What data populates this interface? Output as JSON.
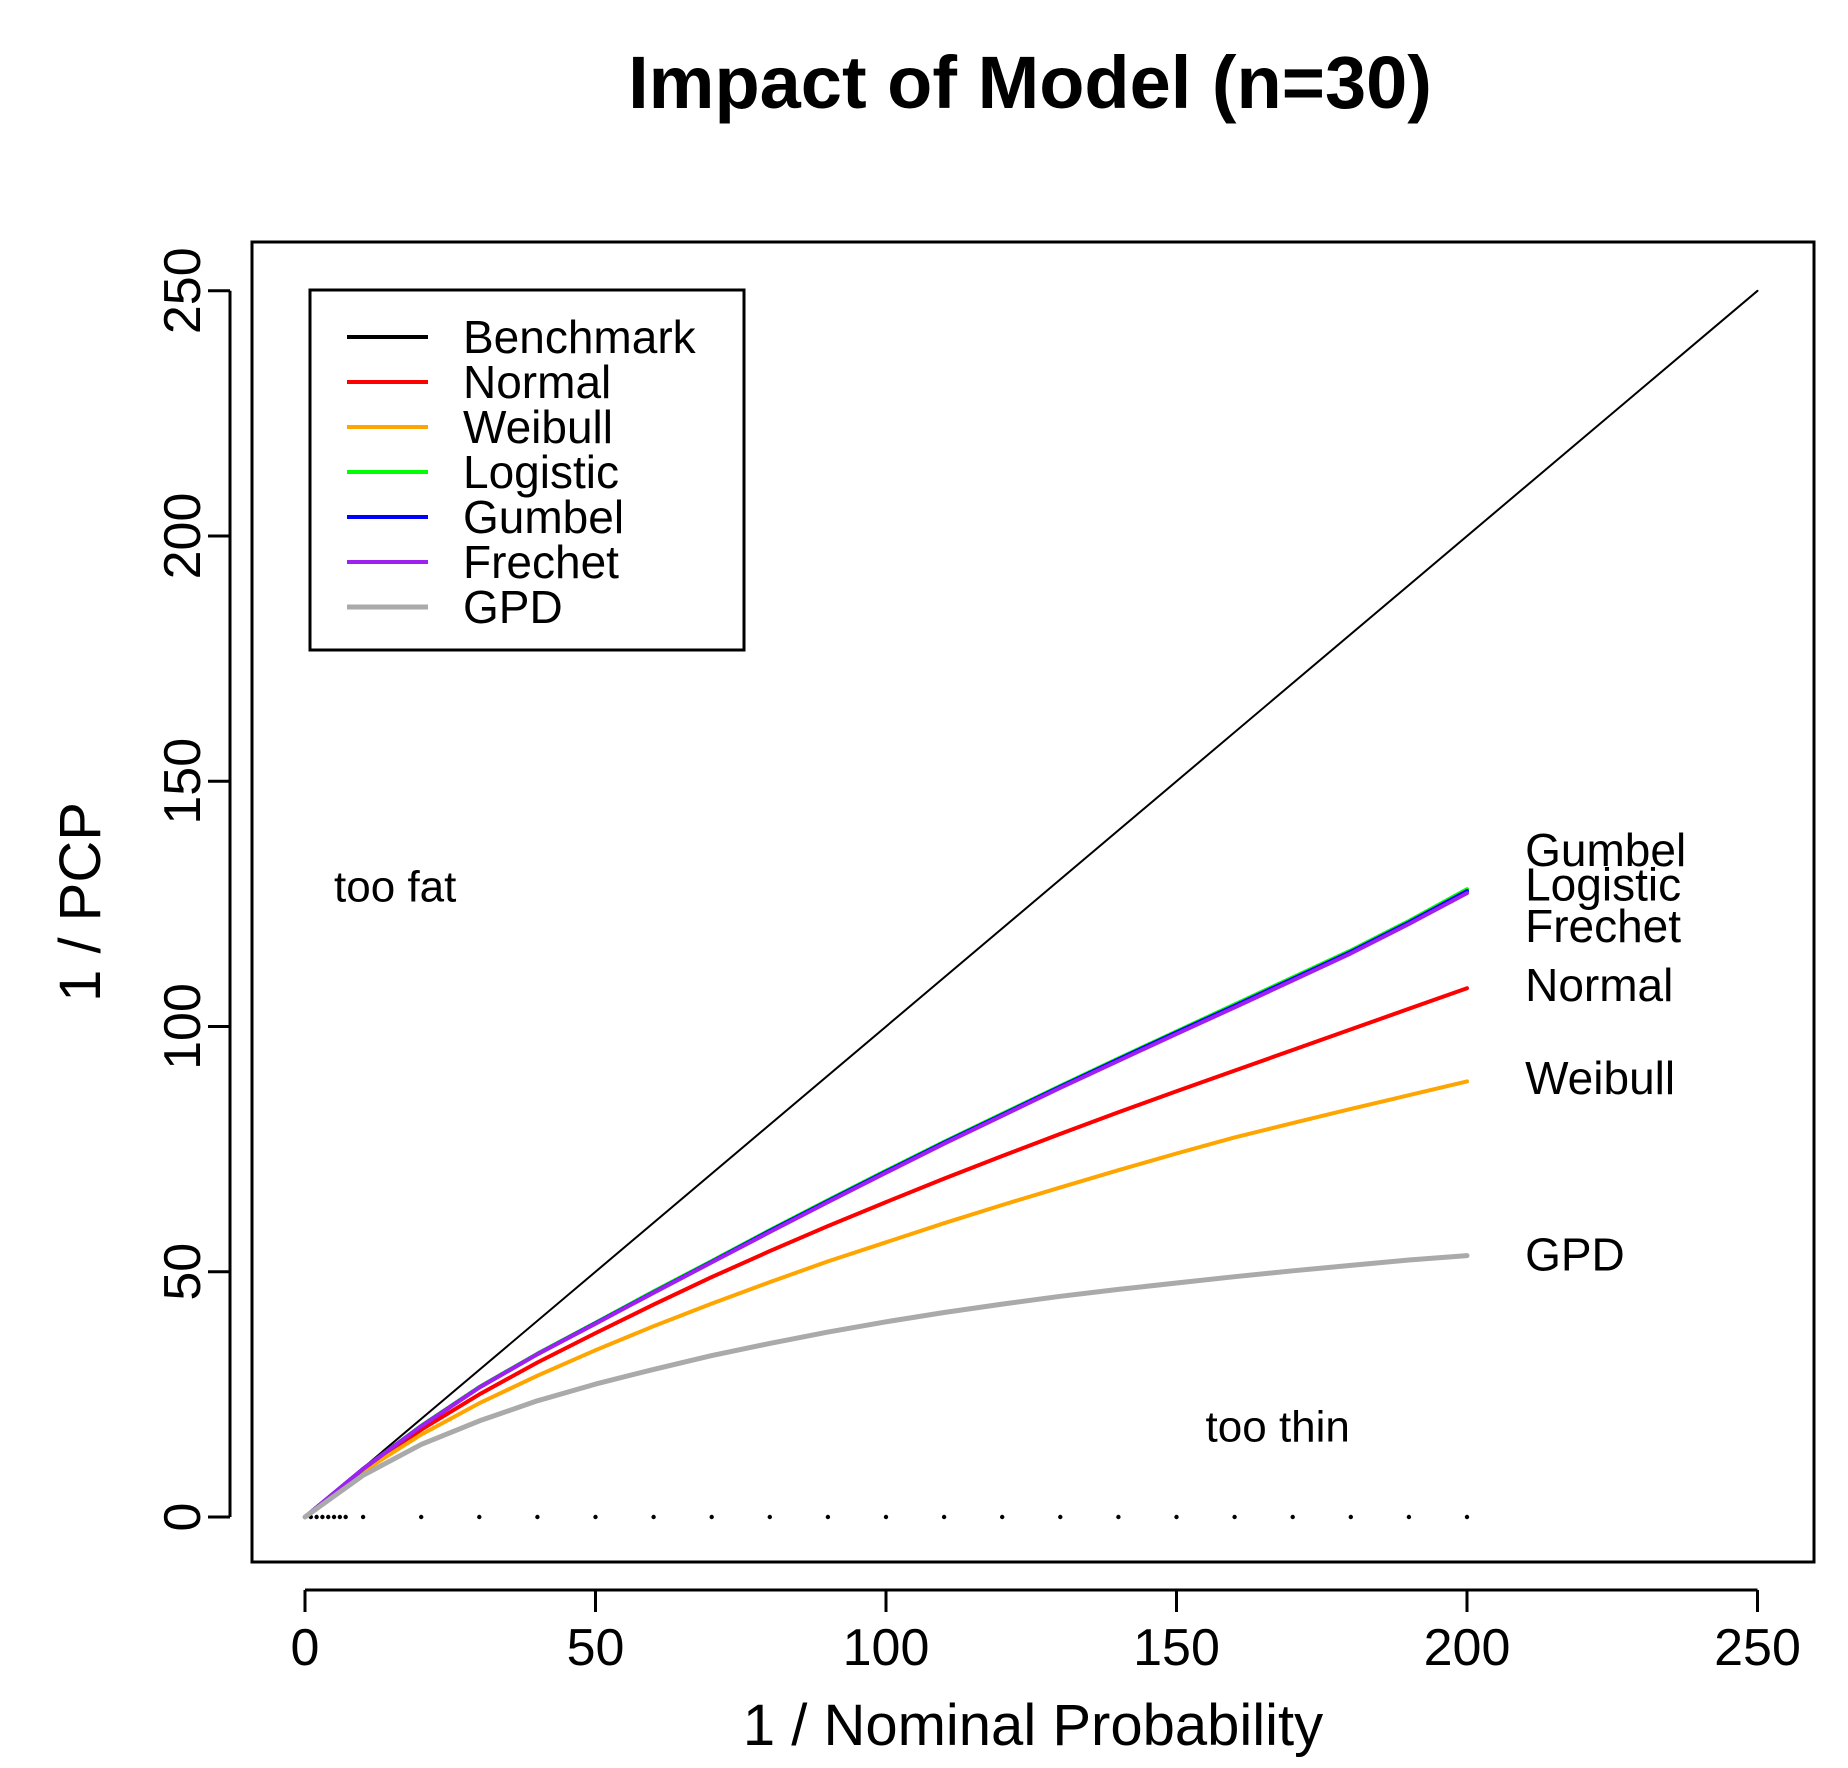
{
  "chart_data": {
    "type": "line",
    "title": "Impact of Model (n=30)",
    "xlabel": "1 / Nominal Probability",
    "ylabel": "1 / PCP",
    "xlim": [
      0,
      250
    ],
    "ylim": [
      0,
      250
    ],
    "xticks": [
      0,
      50,
      100,
      150,
      200,
      250
    ],
    "yticks": [
      0,
      50,
      100,
      150,
      200,
      250
    ],
    "legend_position": "top-left",
    "x": [
      0,
      10,
      20,
      30,
      40,
      50,
      60,
      70,
      80,
      90,
      100,
      110,
      120,
      130,
      140,
      150,
      160,
      170,
      180,
      190,
      200
    ],
    "series": [
      {
        "name": "Benchmark",
        "color": "#000000",
        "x": [
          0,
          250
        ],
        "values": [
          0,
          250
        ]
      },
      {
        "name": "Normal",
        "color": "#ff0000",
        "values": [
          0,
          9.6,
          17.8,
          25,
          31.5,
          37.5,
          43.3,
          48.9,
          54.2,
          59.3,
          64.2,
          69,
          73.6,
          78.1,
          82.5,
          86.8,
          91,
          95.2,
          99.4,
          103.6,
          107.8
        ]
      },
      {
        "name": "Weibull",
        "color": "#ffa500",
        "values": [
          0,
          9.3,
          16.8,
          23.2,
          28.8,
          34,
          38.9,
          43.5,
          47.9,
          52.1,
          56,
          59.9,
          63.6,
          67.2,
          70.7,
          74.1,
          77.4,
          80.3,
          83.2,
          86,
          88.8
        ]
      },
      {
        "name": "Logistic",
        "color": "#00ff00",
        "values": [
          0,
          9.8,
          18.6,
          26.5,
          33.3,
          39.6,
          46,
          52.2,
          58.5,
          64.6,
          70.6,
          76.5,
          82.2,
          87.9,
          93.5,
          99,
          104.5,
          110,
          115.5,
          121.5,
          128
        ]
      },
      {
        "name": "Gumbel",
        "color": "#0000ff",
        "values": [
          0,
          9.8,
          18.5,
          26.4,
          33.2,
          39.5,
          45.8,
          52,
          58.3,
          64.4,
          70.4,
          76.3,
          82,
          87.7,
          93.3,
          98.8,
          104.2,
          109.7,
          115.2,
          121.2,
          127.6
        ]
      },
      {
        "name": "Frechet",
        "color": "#a020f0",
        "values": [
          0,
          9.8,
          18.5,
          26.4,
          33.2,
          39.4,
          45.7,
          51.9,
          58.1,
          64.2,
          70.2,
          76.1,
          81.8,
          87.5,
          93,
          98.5,
          103.9,
          109.4,
          114.9,
          120.9,
          127.2
        ]
      },
      {
        "name": "GPD",
        "color": "#aaaaaa",
        "values": [
          0,
          8.5,
          14.8,
          19.6,
          23.7,
          27.1,
          30.1,
          32.9,
          35.4,
          37.7,
          39.8,
          41.7,
          43.4,
          45,
          46.4,
          47.7,
          49,
          50.2,
          51.3,
          52.4,
          53.3
        ]
      }
    ],
    "legend": [
      "Benchmark",
      "Normal",
      "Weibull",
      "Logistic",
      "Gumbel",
      "Frechet",
      "GPD"
    ],
    "end_labels": [
      {
        "text": "Gumbel",
        "y": 136
      },
      {
        "text": "Logistic",
        "y": 129
      },
      {
        "text": "Frechet",
        "y": 120.5
      },
      {
        "text": "Normal",
        "y": 108.5
      },
      {
        "text": "Weibull",
        "y": 89.5
      },
      {
        "text": "GPD",
        "y": 53.5
      }
    ],
    "end_label_x": 210,
    "annotations": [
      {
        "text": "too fat",
        "x": 5,
        "y": 128.5
      },
      {
        "text": "too thin",
        "x": 155,
        "y": 18.5
      }
    ],
    "baseline_dots_x": [
      1,
      2,
      3,
      4,
      5,
      6,
      7,
      10,
      20,
      30,
      40,
      50,
      60,
      70,
      80,
      90,
      100,
      110,
      120,
      130,
      140,
      150,
      160,
      170,
      180,
      190,
      200
    ]
  }
}
